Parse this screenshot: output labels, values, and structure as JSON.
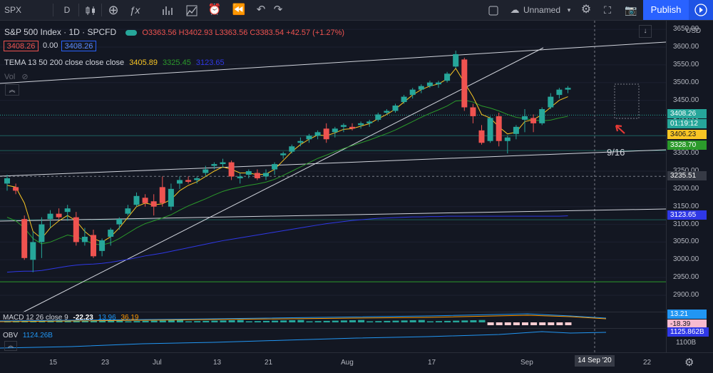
{
  "toolbar": {
    "symbol": "SPX",
    "interval": "D",
    "layout_name": "Unnamed",
    "publish_label": "Publish"
  },
  "legend": {
    "title": "S&P 500 Index · 1D · SPCFD",
    "ohlc": "O3363.56 H3402.93 L3363.56 C3383.54 +42.57 (+1.27%)",
    "bid": "3408.26",
    "spread": "0.00",
    "ask": "3408.26",
    "tema_label": "TEMA 13 50 200 close close close",
    "tema_v1": "3405.89",
    "tema_v2": "3325.45",
    "tema_v3": "3123.65",
    "vol_label": "Vol",
    "macd_label": "MACD 12 26 close 9",
    "macd_v1": "-22.23",
    "macd_v2": "13.96",
    "macd_v3": "36.19",
    "obv_label": "OBV",
    "obv_value": "1124.26B"
  },
  "annotation": "9/16",
  "price_axis": {
    "currency": "USD",
    "ticks": [
      "3650.00",
      "3600.00",
      "3550.00",
      "3500.00",
      "3450.00",
      "3400.00",
      "3350.00",
      "3300.00",
      "3250.00",
      "3200.00",
      "3150.00",
      "3100.00",
      "3050.00",
      "3000.00",
      "2950.00",
      "2900.00"
    ],
    "tags": {
      "last": "3408.26",
      "countdown": "01:19:12",
      "tema13": "3406.23",
      "tema50": "3328.70",
      "crosshair": "3235.51",
      "tema200": "3123.65",
      "macd_pos": "13.21",
      "macd_neg": "-18.39",
      "obv": "1125.862B",
      "obv_axis": "1100B"
    },
    "colors": {
      "last": "#26a69a",
      "tema13": "#f9c624",
      "tema50": "#2b9a2b",
      "tema200": "#2f38e6",
      "macd_pos": "#2196f3",
      "macd_neg": "#f8bbd0"
    }
  },
  "date_axis": {
    "labels": [
      "15",
      "23",
      "Jul",
      "13",
      "21",
      "Aug",
      "17",
      "Sep",
      "22"
    ],
    "crosshair_date": "14 Sep '20"
  },
  "chart_data": {
    "type": "candlestick",
    "ylim": [
      2875,
      3670
    ],
    "candles": [
      {
        "o": 3215,
        "h": 3240,
        "l": 3195,
        "c": 3230
      },
      {
        "o": 3205,
        "h": 3215,
        "l": 3185,
        "c": 3195
      },
      {
        "o": 3115,
        "h": 3125,
        "l": 3000,
        "c": 3005
      },
      {
        "o": 3000,
        "h": 3080,
        "l": 2965,
        "c": 3050
      },
      {
        "o": 3050,
        "h": 3120,
        "l": 3005,
        "c": 3100
      },
      {
        "o": 3115,
        "h": 3140,
        "l": 3090,
        "c": 3130
      },
      {
        "o": 3130,
        "h": 3145,
        "l": 3115,
        "c": 3120
      },
      {
        "o": 3135,
        "h": 3155,
        "l": 3110,
        "c": 3145
      },
      {
        "o": 3120,
        "h": 3135,
        "l": 3040,
        "c": 3050
      },
      {
        "o": 3050,
        "h": 3090,
        "l": 3040,
        "c": 3065
      },
      {
        "o": 3070,
        "h": 3085,
        "l": 3005,
        "c": 3010
      },
      {
        "o": 3025,
        "h": 3060,
        "l": 3010,
        "c": 3055
      },
      {
        "o": 3065,
        "h": 3090,
        "l": 3040,
        "c": 3085
      },
      {
        "o": 3100,
        "h": 3120,
        "l": 3085,
        "c": 3115
      },
      {
        "o": 3130,
        "h": 3155,
        "l": 3125,
        "c": 3145
      },
      {
        "o": 3155,
        "h": 3190,
        "l": 3150,
        "c": 3180
      },
      {
        "o": 3175,
        "h": 3185,
        "l": 3150,
        "c": 3160
      },
      {
        "o": 3165,
        "h": 3185,
        "l": 3125,
        "c": 3150
      },
      {
        "o": 3205,
        "h": 3235,
        "l": 3150,
        "c": 3160
      },
      {
        "o": 3150,
        "h": 3215,
        "l": 3140,
        "c": 3200
      },
      {
        "o": 3215,
        "h": 3235,
        "l": 3200,
        "c": 3225
      },
      {
        "o": 3225,
        "h": 3235,
        "l": 3215,
        "c": 3220
      },
      {
        "o": 3225,
        "h": 3235,
        "l": 3215,
        "c": 3230
      },
      {
        "o": 3245,
        "h": 3265,
        "l": 3235,
        "c": 3255
      },
      {
        "o": 3265,
        "h": 3275,
        "l": 3255,
        "c": 3270
      },
      {
        "o": 3270,
        "h": 3285,
        "l": 3260,
        "c": 3275
      },
      {
        "o": 3275,
        "h": 3280,
        "l": 3225,
        "c": 3235
      },
      {
        "o": 3230,
        "h": 3245,
        "l": 3215,
        "c": 3235
      },
      {
        "o": 3240,
        "h": 3255,
        "l": 3230,
        "c": 3250
      },
      {
        "o": 3245,
        "h": 3255,
        "l": 3225,
        "c": 3230
      },
      {
        "o": 3235,
        "h": 3255,
        "l": 3225,
        "c": 3245
      },
      {
        "o": 3255,
        "h": 3275,
        "l": 3240,
        "c": 3270
      },
      {
        "o": 3295,
        "h": 3305,
        "l": 3285,
        "c": 3300
      },
      {
        "o": 3305,
        "h": 3325,
        "l": 3300,
        "c": 3320
      },
      {
        "o": 3330,
        "h": 3345,
        "l": 3320,
        "c": 3335
      },
      {
        "o": 3340,
        "h": 3355,
        "l": 3330,
        "c": 3350
      },
      {
        "o": 3350,
        "h": 3365,
        "l": 3340,
        "c": 3360
      },
      {
        "o": 3370,
        "h": 3385,
        "l": 3330,
        "c": 3340
      },
      {
        "o": 3360,
        "h": 3375,
        "l": 3345,
        "c": 3370
      },
      {
        "o": 3375,
        "h": 3385,
        "l": 3360,
        "c": 3380
      },
      {
        "o": 3375,
        "h": 3385,
        "l": 3365,
        "c": 3370
      },
      {
        "o": 3380,
        "h": 3390,
        "l": 3370,
        "c": 3385
      },
      {
        "o": 3385,
        "h": 3395,
        "l": 3375,
        "c": 3390
      },
      {
        "o": 3395,
        "h": 3415,
        "l": 3390,
        "c": 3410
      },
      {
        "o": 3415,
        "h": 3425,
        "l": 3410,
        "c": 3420
      },
      {
        "o": 3420,
        "h": 3440,
        "l": 3415,
        "c": 3435
      },
      {
        "o": 3445,
        "h": 3465,
        "l": 3440,
        "c": 3460
      },
      {
        "o": 3465,
        "h": 3485,
        "l": 3455,
        "c": 3480
      },
      {
        "o": 3480,
        "h": 3495,
        "l": 3470,
        "c": 3490
      },
      {
        "o": 3490,
        "h": 3505,
        "l": 3485,
        "c": 3500
      },
      {
        "o": 3495,
        "h": 3505,
        "l": 3485,
        "c": 3500
      },
      {
        "o": 3505,
        "h": 3530,
        "l": 3500,
        "c": 3525
      },
      {
        "o": 3545,
        "h": 3590,
        "l": 3540,
        "c": 3580
      },
      {
        "o": 3565,
        "h": 3570,
        "l": 3420,
        "c": 3430
      },
      {
        "o": 3430,
        "h": 3440,
        "l": 3385,
        "c": 3405
      },
      {
        "o": 3365,
        "h": 3380,
        "l": 3325,
        "c": 3330
      },
      {
        "o": 3335,
        "h": 3405,
        "l": 3330,
        "c": 3400
      },
      {
        "o": 3405,
        "h": 3415,
        "l": 3320,
        "c": 3335
      },
      {
        "o": 3335,
        "h": 3350,
        "l": 3300,
        "c": 3345
      },
      {
        "o": 3355,
        "h": 3380,
        "l": 3340,
        "c": 3375
      },
      {
        "o": 3395,
        "h": 3425,
        "l": 3360,
        "c": 3405
      },
      {
        "o": 3400,
        "h": 3410,
        "l": 3360,
        "c": 3385
      },
      {
        "o": 3385,
        "h": 3430,
        "l": 3380,
        "c": 3425
      },
      {
        "o": 3430,
        "h": 3470,
        "l": 3425,
        "c": 3460
      },
      {
        "o": 3465,
        "h": 3485,
        "l": 3455,
        "c": 3480
      },
      {
        "o": 3480,
        "h": 3490,
        "l": 3470,
        "c": 3485
      }
    ],
    "tema13": [
      3210,
      3205,
      3160,
      3080,
      3060,
      3090,
      3110,
      3125,
      3110,
      3080,
      3060,
      3050,
      3065,
      3090,
      3120,
      3150,
      3160,
      3155,
      3158,
      3170,
      3195,
      3210,
      3220,
      3235,
      3250,
      3262,
      3255,
      3245,
      3245,
      3240,
      3242,
      3255,
      3280,
      3305,
      3325,
      3340,
      3352,
      3350,
      3358,
      3368,
      3370,
      3377,
      3384,
      3398,
      3410,
      3425,
      3445,
      3465,
      3480,
      3490,
      3496,
      3510,
      3540,
      3500,
      3460,
      3410,
      3400,
      3375,
      3355,
      3360,
      3390,
      3395,
      3410,
      3430,
      3450,
      3460
    ],
    "tema50": [
      3120,
      3110,
      3090,
      3060,
      3045,
      3050,
      3060,
      3070,
      3065,
      3055,
      3045,
      3042,
      3048,
      3060,
      3075,
      3090,
      3102,
      3110,
      3118,
      3127,
      3140,
      3152,
      3162,
      3172,
      3183,
      3193,
      3200,
      3205,
      3210,
      3214,
      3219,
      3227,
      3238,
      3250,
      3262,
      3274,
      3286,
      3295,
      3305,
      3314,
      3322,
      3330,
      3338,
      3347,
      3356,
      3366,
      3378,
      3390,
      3402,
      3413,
      3423,
      3434,
      3448,
      3450,
      3445,
      3434,
      3428,
      3420,
      3410,
      3402,
      3398,
      3394,
      3392,
      3394,
      3400,
      3405
    ],
    "tema200": [
      2965,
      2967,
      2968,
      2968,
      2970,
      2974,
      2978,
      2982,
      2985,
      2987,
      2988,
      2990,
      2993,
      2997,
      3001,
      3006,
      3011,
      3015,
      3019,
      3024,
      3029,
      3034,
      3039,
      3044,
      3049,
      3054,
      3058,
      3062,
      3066,
      3070,
      3074,
      3078,
      3082,
      3086,
      3090,
      3094,
      3098,
      3102,
      3105,
      3108,
      3111,
      3113,
      3115,
      3117,
      3118,
      3119,
      3120,
      3121,
      3121,
      3122,
      3122,
      3123,
      3123,
      3123,
      3123,
      3123,
      3123,
      3123,
      3123,
      3123,
      3123,
      3123,
      3123,
      3123,
      3123,
      3124
    ]
  }
}
